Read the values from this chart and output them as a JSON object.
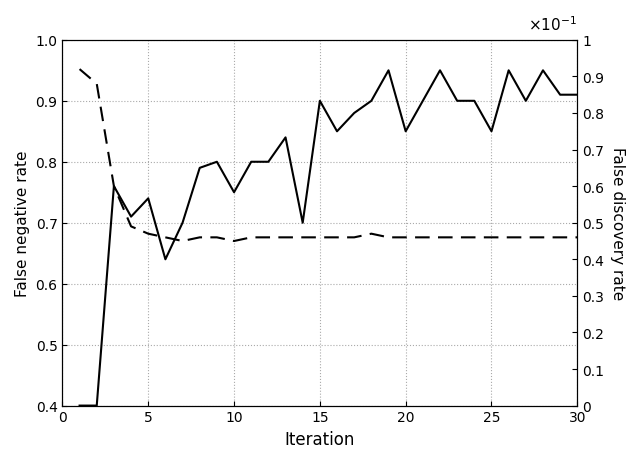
{
  "iterations": [
    1,
    2,
    3,
    4,
    5,
    6,
    7,
    8,
    9,
    10,
    11,
    12,
    13,
    14,
    15,
    16,
    17,
    18,
    19,
    20,
    21,
    22,
    23,
    24,
    25,
    26,
    27,
    28,
    29,
    30
  ],
  "fnr": [
    0.4,
    0.4,
    0.76,
    0.71,
    0.74,
    0.64,
    0.7,
    0.79,
    0.8,
    0.75,
    0.8,
    0.8,
    0.84,
    0.7,
    0.9,
    0.85,
    0.88,
    0.9,
    0.95,
    0.85,
    0.9,
    0.95,
    0.9,
    0.9,
    0.85,
    0.95,
    0.9,
    0.95,
    0.91,
    0.91
  ],
  "fdr_actual": [
    0.092,
    0.088,
    0.06,
    0.049,
    0.047,
    0.046,
    0.045,
    0.046,
    0.046,
    0.045,
    0.046,
    0.046,
    0.046,
    0.046,
    0.046,
    0.046,
    0.046,
    0.047,
    0.046,
    0.046,
    0.046,
    0.046,
    0.046,
    0.046,
    0.046,
    0.046,
    0.046,
    0.046,
    0.046,
    0.046
  ],
  "xlabel": "Iteration",
  "ylabel_left": "False negative rate",
  "ylabel_right": "False discovery rate",
  "ylim_left": [
    0.4,
    1.0
  ],
  "ylim_right": [
    0.0,
    0.1
  ],
  "xlim": [
    0,
    30
  ],
  "xticks": [
    0,
    5,
    10,
    15,
    20,
    25,
    30
  ],
  "yticks_left": [
    0.4,
    0.5,
    0.6,
    0.7,
    0.8,
    0.9,
    1.0
  ],
  "yticks_right_actual": [
    0.0,
    0.01,
    0.02,
    0.03,
    0.04,
    0.05,
    0.06,
    0.07,
    0.08,
    0.09,
    0.1
  ],
  "yticks_right_labels": [
    "0",
    "0.1",
    "0.2",
    "0.3",
    "0.4",
    "0.5",
    "0.6",
    "0.7",
    "0.8",
    "0.9",
    "1"
  ],
  "grid_color": "#aaaaaa",
  "line_color": "#000000",
  "bg_color": "#ffffff",
  "scale_label": "$\\times10^{-1}$"
}
